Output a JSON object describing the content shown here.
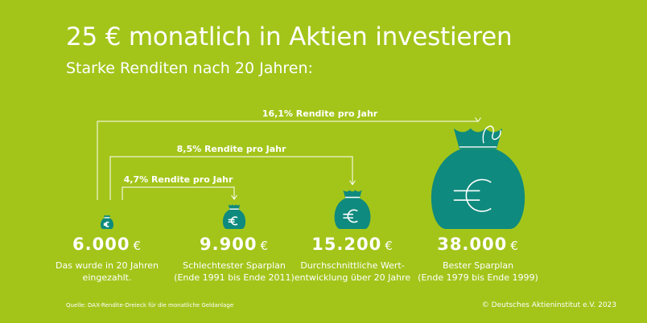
{
  "title": "25 € monatlich in Aktien investieren",
  "subtitle": "Starke Renditen nach 20 Jahren:",
  "colors": {
    "background": "#a3c51a",
    "bag": "#0f8a7e",
    "text": "#ffffff"
  },
  "icons": [
    "money-bag-icon"
  ],
  "chart_data": {
    "type": "bar",
    "categories": [
      "Das wurde in 20 Jahren eingezahlt.",
      "Schlechtester Sparplan (Ende 1991 bis Ende 2011)",
      "Durchschnittliche Wertentwicklung über 20 Jahre",
      "Bester Sparplan (Ende 1979 bis Ende 1999)"
    ],
    "values": [
      6000,
      9900,
      15200,
      38000
    ],
    "unit": "€",
    "items": [
      {
        "amount": "6.000",
        "currency": "€",
        "line1": "Das wurde in 20 Jahren",
        "line2": "eingezahlt."
      },
      {
        "amount": "9.900",
        "currency": "€",
        "line1": "Schlechtester Sparplan",
        "line2": "(Ende 1991 bis Ende 2011)"
      },
      {
        "amount": "15.200",
        "currency": "€",
        "line1": "Durchschnittliche Wert-",
        "line2": "entwicklung über 20 Jahre"
      },
      {
        "amount": "38.000",
        "currency": "€",
        "line1": "Bester Sparplan",
        "line2": "(Ende 1979 bis Ende 1999)"
      }
    ],
    "annotations": [
      {
        "label": "4,7% Rendite pro Jahr",
        "to": 1,
        "rate": 4.7
      },
      {
        "label": "8,5% Rendite pro Jahr",
        "to": 2,
        "rate": 8.5
      },
      {
        "label": "16,1% Rendite pro Jahr",
        "to": 3,
        "rate": 16.1
      }
    ]
  },
  "footer": {
    "source": "Quelle: DAX-Rendite-Dreieck für die monatliche Geldanlage",
    "copyright": "© Deutsches Aktieninstitut e.V. 2023"
  }
}
